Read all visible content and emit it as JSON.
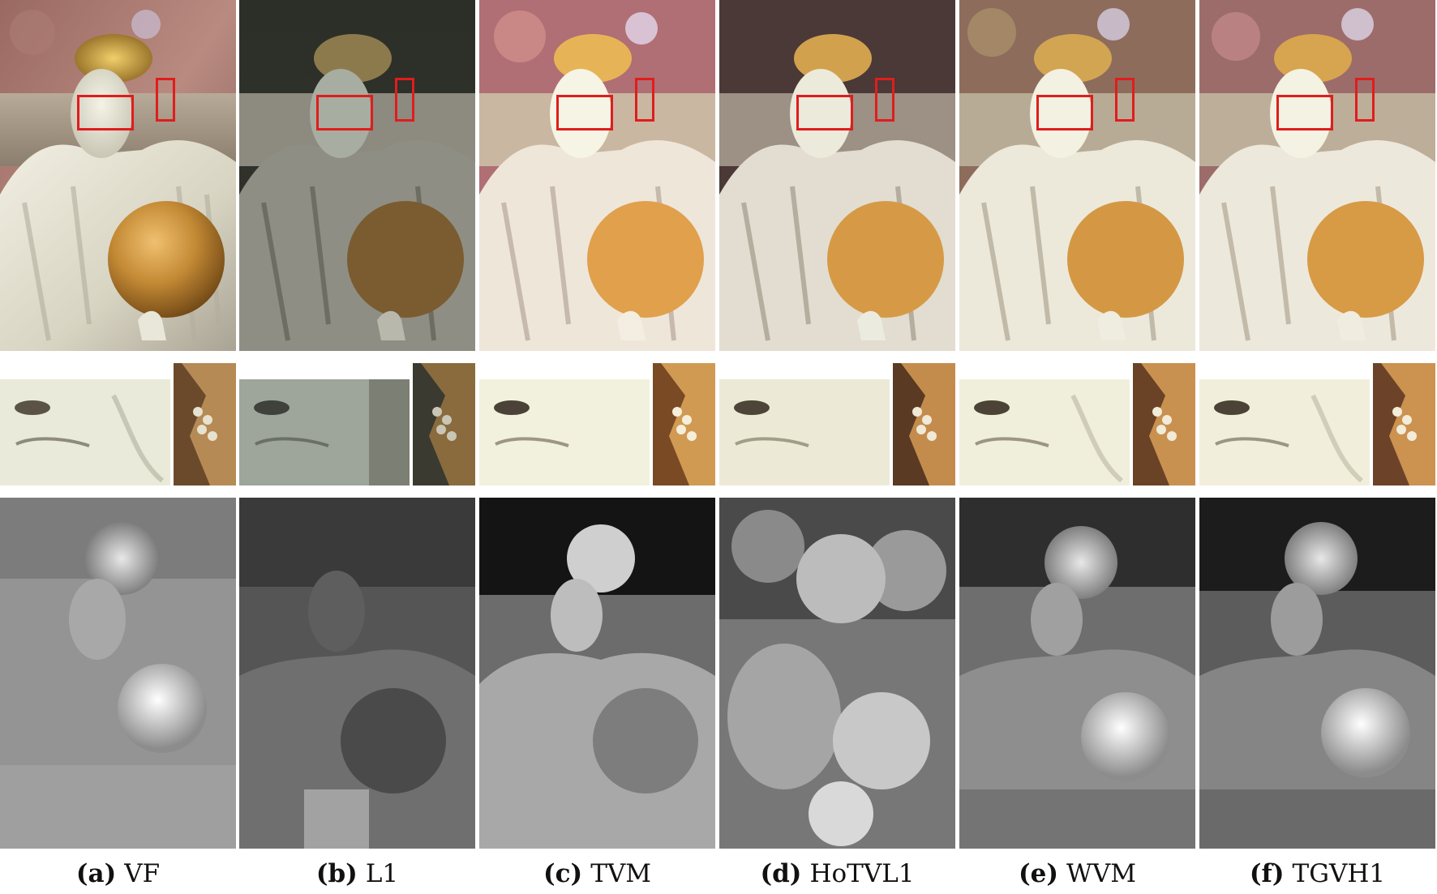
{
  "panels": [
    {
      "tag": "(a)",
      "method": "VF"
    },
    {
      "tag": "(b)",
      "method": "L1"
    },
    {
      "tag": "(c)",
      "method": "TVM"
    },
    {
      "tag": "(d)",
      "method": "HoTVL1"
    },
    {
      "tag": "(e)",
      "method": "WVM"
    },
    {
      "tag": "(f)",
      "method": "TGVH1"
    }
  ],
  "colors": {
    "roi_box": "#e01d1d",
    "background": "#ffffff"
  }
}
